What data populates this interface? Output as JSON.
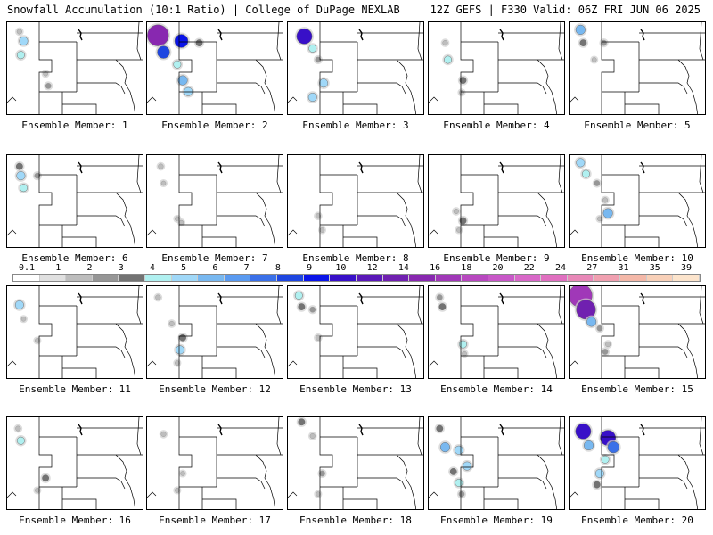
{
  "header": {
    "left": "Snowfall Accumulation (10:1 Ratio) | College of DuPage NEXLAB",
    "right": "12Z GEFS | F330 Valid: 06Z FRI JUN 06 2025"
  },
  "members": [
    {
      "label": "Ensemble Member: 1",
      "snow": [
        [
          0.09,
          0.1,
          1.5
        ],
        [
          0.12,
          0.2,
          5
        ],
        [
          0.1,
          0.35,
          4
        ],
        [
          0.28,
          0.55,
          1
        ],
        [
          0.3,
          0.68,
          2
        ]
      ]
    },
    {
      "label": "Ensemble Member: 2",
      "snow": [
        [
          0.08,
          0.14,
          18
        ],
        [
          0.12,
          0.32,
          9
        ],
        [
          0.22,
          0.45,
          4
        ],
        [
          0.26,
          0.62,
          6
        ],
        [
          0.3,
          0.74,
          5
        ],
        [
          0.25,
          0.2,
          10
        ],
        [
          0.38,
          0.22,
          3
        ]
      ]
    },
    {
      "label": "Ensemble Member: 3",
      "snow": [
        [
          0.12,
          0.15,
          12
        ],
        [
          0.18,
          0.28,
          4
        ],
        [
          0.22,
          0.4,
          2
        ],
        [
          0.26,
          0.65,
          5
        ],
        [
          0.18,
          0.8,
          5
        ]
      ]
    },
    {
      "label": "Ensemble Member: 4",
      "snow": [
        [
          0.12,
          0.22,
          1.5
        ],
        [
          0.14,
          0.4,
          4
        ],
        [
          0.25,
          0.62,
          3
        ],
        [
          0.24,
          0.75,
          1
        ]
      ]
    },
    {
      "label": "Ensemble Member: 5",
      "snow": [
        [
          0.08,
          0.08,
          6
        ],
        [
          0.1,
          0.22,
          3
        ],
        [
          0.18,
          0.4,
          1
        ],
        [
          0.25,
          0.22,
          2
        ]
      ]
    },
    {
      "label": "Ensemble Member: 6",
      "snow": [
        [
          0.09,
          0.12,
          3
        ],
        [
          0.1,
          0.22,
          5
        ],
        [
          0.12,
          0.35,
          4
        ],
        [
          0.22,
          0.22,
          2
        ]
      ]
    },
    {
      "label": "Ensemble Member: 7",
      "snow": [
        [
          0.1,
          0.12,
          1.5
        ],
        [
          0.12,
          0.3,
          1
        ],
        [
          0.22,
          0.68,
          1
        ],
        [
          0.25,
          0.72,
          1
        ]
      ]
    },
    {
      "label": "Ensemble Member: 8",
      "snow": [
        [
          0.22,
          0.65,
          1.5
        ],
        [
          0.25,
          0.8,
          1
        ]
      ]
    },
    {
      "label": "Ensemble Member: 9",
      "snow": [
        [
          0.2,
          0.6,
          1.5
        ],
        [
          0.25,
          0.7,
          3
        ],
        [
          0.22,
          0.8,
          1
        ]
      ]
    },
    {
      "label": "Ensemble Member: 10",
      "snow": [
        [
          0.08,
          0.08,
          5
        ],
        [
          0.12,
          0.2,
          4
        ],
        [
          0.2,
          0.3,
          2
        ],
        [
          0.26,
          0.48,
          1.5
        ],
        [
          0.28,
          0.62,
          6
        ],
        [
          0.22,
          0.68,
          1
        ]
      ]
    },
    {
      "label": "Ensemble Member: 11",
      "snow": [
        [
          0.09,
          0.2,
          5
        ],
        [
          0.12,
          0.35,
          1
        ],
        [
          0.22,
          0.58,
          1
        ]
      ]
    },
    {
      "label": "Ensemble Member: 12",
      "snow": [
        [
          0.08,
          0.12,
          1.5
        ],
        [
          0.18,
          0.4,
          1.5
        ],
        [
          0.26,
          0.55,
          3
        ],
        [
          0.24,
          0.68,
          5
        ],
        [
          0.22,
          0.82,
          1
        ]
      ]
    },
    {
      "label": "Ensemble Member: 13",
      "snow": [
        [
          0.08,
          0.1,
          4
        ],
        [
          0.1,
          0.22,
          3
        ],
        [
          0.18,
          0.25,
          2
        ],
        [
          0.22,
          0.55,
          1.5
        ]
      ]
    },
    {
      "label": "Ensemble Member: 14",
      "snow": [
        [
          0.08,
          0.12,
          2
        ],
        [
          0.1,
          0.22,
          3
        ],
        [
          0.25,
          0.62,
          4
        ],
        [
          0.26,
          0.72,
          1
        ]
      ]
    },
    {
      "label": "Ensemble Member: 15",
      "snow": [
        [
          0.08,
          0.1,
          20
        ],
        [
          0.12,
          0.25,
          16
        ],
        [
          0.16,
          0.38,
          6
        ],
        [
          0.22,
          0.45,
          2
        ],
        [
          0.28,
          0.62,
          1.5
        ],
        [
          0.26,
          0.7,
          2
        ]
      ]
    },
    {
      "label": "Ensemble Member: 16",
      "snow": [
        [
          0.08,
          0.12,
          1.5
        ],
        [
          0.1,
          0.25,
          4
        ],
        [
          0.28,
          0.65,
          3
        ],
        [
          0.22,
          0.78,
          1
        ]
      ]
    },
    {
      "label": "Ensemble Member: 17",
      "snow": [
        [
          0.12,
          0.18,
          1.5
        ],
        [
          0.26,
          0.6,
          1
        ],
        [
          0.22,
          0.78,
          1
        ]
      ]
    },
    {
      "label": "Ensemble Member: 18",
      "snow": [
        [
          0.1,
          0.05,
          3
        ],
        [
          0.18,
          0.2,
          1.5
        ],
        [
          0.25,
          0.6,
          2
        ],
        [
          0.22,
          0.82,
          1
        ]
      ]
    },
    {
      "label": "Ensemble Member: 19",
      "snow": [
        [
          0.08,
          0.12,
          3
        ],
        [
          0.12,
          0.32,
          6
        ],
        [
          0.22,
          0.35,
          5
        ],
        [
          0.28,
          0.52,
          5
        ],
        [
          0.18,
          0.58,
          3
        ],
        [
          0.22,
          0.7,
          4
        ],
        [
          0.24,
          0.82,
          2
        ]
      ]
    },
    {
      "label": "Ensemble Member: 20",
      "snow": [
        [
          0.1,
          0.15,
          12
        ],
        [
          0.14,
          0.3,
          6
        ],
        [
          0.28,
          0.22,
          12
        ],
        [
          0.32,
          0.32,
          8
        ],
        [
          0.26,
          0.45,
          4
        ],
        [
          0.22,
          0.6,
          5
        ],
        [
          0.2,
          0.72,
          3
        ]
      ]
    }
  ],
  "colorbar": {
    "labels": [
      "0.1",
      "1",
      "2",
      "3",
      "4",
      "5",
      "6",
      "7",
      "8",
      "9",
      "10",
      "12",
      "14",
      "16",
      "18",
      "20",
      "22",
      "24",
      "27",
      "31",
      "35",
      "39"
    ],
    "colors": [
      "#ffffff",
      "#e0e0e0",
      "#bdbdbd",
      "#969696",
      "#737373",
      "#b0f0f0",
      "#a0d8f8",
      "#78b8f0",
      "#5a9af0",
      "#3a70e8",
      "#1e46e0",
      "#0a14e8",
      "#3810c8",
      "#5a18b8",
      "#7020b0",
      "#8828b0",
      "#a038b8",
      "#b848c0",
      "#c858c8",
      "#d868c8",
      "#e070c0",
      "#e888b8",
      "#f0a0b0",
      "#f4b8a8",
      "#f8d0b8",
      "#fce4cc"
    ]
  }
}
